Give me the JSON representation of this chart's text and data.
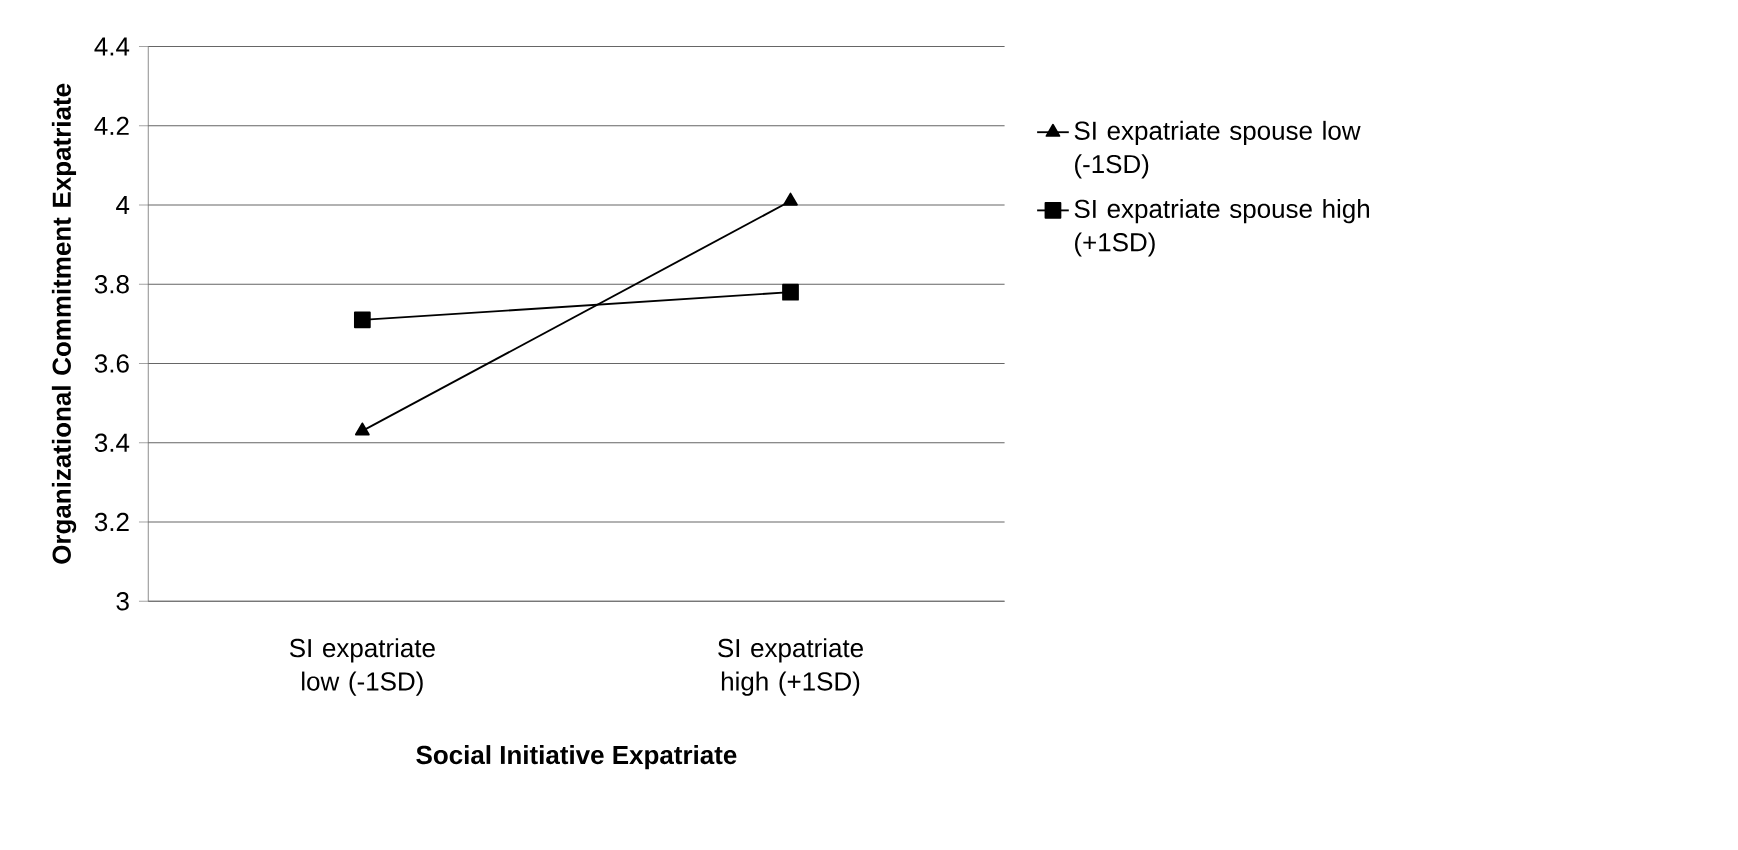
{
  "chart_data": {
    "type": "line",
    "xlabel": "Social Initiative Expatriate",
    "ylabel": "Organizational Commitment Expatriate",
    "categories": [
      "SI expatriate low (-1SD)",
      "SI expatriate high (+1SD)"
    ],
    "series": [
      {
        "name": "SI expatriate spouse low (-1SD)",
        "color": "#000000",
        "marker": "triangle",
        "values": [
          3.43,
          4.01
        ]
      },
      {
        "name": "SI expatriate spouse high (+1SD)",
        "color": "#000000",
        "marker": "square",
        "values": [
          3.71,
          3.78
        ]
      }
    ],
    "ylim": [
      3,
      4.4
    ],
    "yticks": [
      3,
      3.2,
      3.4,
      3.6,
      3.8,
      4,
      4.2,
      4.4
    ],
    "grid": "y",
    "legend": "right",
    "line_style": "solid"
  }
}
